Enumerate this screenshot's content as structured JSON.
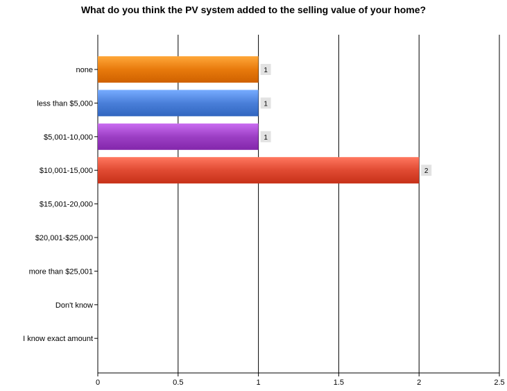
{
  "chart_data": {
    "type": "bar",
    "orientation": "horizontal",
    "title": "What do you think the PV system added to the selling value of your home?",
    "categories": [
      "none",
      "less than $5,000",
      "$5,001-10,000",
      "$10,001-15,000",
      "$15,001-20,000",
      "$20,001-$25,000",
      "more than $25,001",
      "Don't know",
      "I know exact amount"
    ],
    "values": [
      1,
      1,
      1,
      2,
      0,
      0,
      0,
      0,
      0
    ],
    "bar_colors": [
      "#e87a0c",
      "#4a7fd9",
      "#9c3fc4",
      "#e04a32",
      null,
      null,
      null,
      null,
      null
    ],
    "data_labels": [
      "1",
      "1",
      "1",
      "2",
      "",
      "",
      "",
      "",
      ""
    ],
    "xlim": [
      0,
      2.5
    ],
    "x_ticks": [
      "0",
      "0.5",
      "1",
      "1.5",
      "2",
      "2.5"
    ],
    "grid": true,
    "legend": "none"
  }
}
